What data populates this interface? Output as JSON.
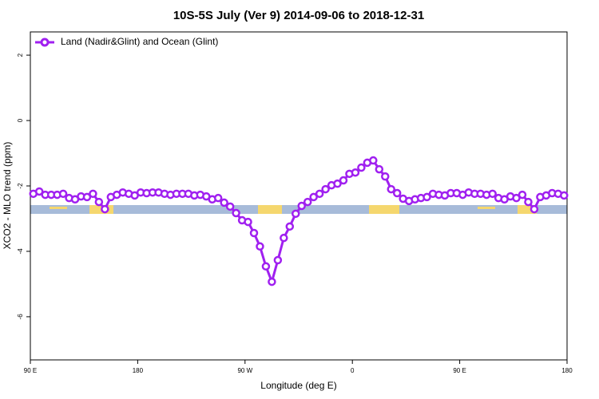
{
  "chart_data": {
    "type": "line",
    "title": "10S-5S July (Ver 9)   2014-09-06 to 2018-12-31",
    "x_label": "Longitude (deg E)",
    "y_label": "XCO2 - MLO trend (ppm)",
    "x": [
      92.5,
      97.5,
      102.5,
      107.5,
      112.5,
      117.5,
      122.5,
      127.5,
      132.5,
      137.5,
      142.5,
      147.5,
      152.5,
      157.5,
      162.5,
      167.5,
      172.5,
      177.5,
      182.5,
      187.5,
      192.5,
      197.5,
      202.5,
      207.5,
      212.5,
      217.5,
      222.5,
      227.5,
      232.5,
      237.5,
      242.5,
      247.5,
      252.5,
      257.5,
      262.5,
      267.5,
      272.5,
      277.5,
      282.5,
      287.5,
      292.5,
      297.5,
      302.5,
      307.5,
      312.5,
      317.5,
      322.5,
      327.5,
      332.5,
      337.5,
      342.5,
      347.5,
      352.5,
      357.5,
      362.5,
      367.5,
      372.5,
      377.5,
      382.5,
      387.5,
      392.5,
      397.5,
      402.5,
      407.5,
      412.5,
      417.5,
      422.5,
      427.5,
      432.5,
      437.5,
      442.5,
      447.5,
      452.5,
      457.5,
      462.5,
      467.5,
      472.5,
      477.5,
      482.5,
      487.5,
      492.5,
      497.5,
      502.5,
      507.5,
      512.5,
      517.5,
      522.5,
      527.5,
      532.5,
      537.5
    ],
    "series": [
      {
        "name": "Land (Nadir&Glint) and Ocean (Glint)",
        "color": "#a020f0",
        "values": [
          -2.24,
          -2.17,
          -2.27,
          -2.27,
          -2.27,
          -2.24,
          -2.37,
          -2.41,
          -2.32,
          -2.34,
          -2.24,
          -2.49,
          -2.71,
          -2.34,
          -2.27,
          -2.2,
          -2.24,
          -2.29,
          -2.2,
          -2.22,
          -2.2,
          -2.2,
          -2.24,
          -2.27,
          -2.24,
          -2.24,
          -2.24,
          -2.29,
          -2.27,
          -2.32,
          -2.41,
          -2.37,
          -2.51,
          -2.63,
          -2.83,
          -3.05,
          -3.1,
          -3.44,
          -3.85,
          -4.46,
          -4.93,
          -4.27,
          -3.59,
          -3.24,
          -2.85,
          -2.61,
          -2.49,
          -2.34,
          -2.24,
          -2.1,
          -1.98,
          -1.93,
          -1.83,
          -1.63,
          -1.59,
          -1.44,
          -1.29,
          -1.22,
          -1.49,
          -1.71,
          -2.1,
          -2.22,
          -2.39,
          -2.46,
          -2.41,
          -2.37,
          -2.34,
          -2.24,
          -2.27,
          -2.29,
          -2.22,
          -2.22,
          -2.27,
          -2.2,
          -2.24,
          -2.24,
          -2.27,
          -2.24,
          -2.37,
          -2.41,
          -2.32,
          -2.37,
          -2.27,
          -2.49,
          -2.71,
          -2.34,
          -2.29,
          -2.22,
          -2.24,
          -2.29
        ]
      }
    ],
    "xlim": [
      90,
      540
    ],
    "xticks": [
      {
        "value": 90,
        "label": "90 E"
      },
      180,
      {
        "value": 270,
        "label": "90 W"
      },
      {
        "value": 360,
        "label": "0"
      },
      {
        "value": 450,
        "label": "90 E"
      },
      {
        "value": 540,
        "label": "180"
      }
    ],
    "ylim": [
      -7.32,
      2.71
    ],
    "yticks": [
      2,
      0,
      -2,
      -4,
      -6
    ],
    "legend": "top-left"
  }
}
